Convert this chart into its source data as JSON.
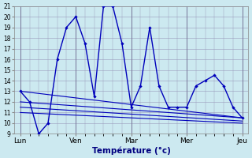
{
  "xlabel": "Température (°c)",
  "ylim": [
    9,
    21
  ],
  "yticks": [
    9,
    10,
    11,
    12,
    13,
    14,
    15,
    16,
    17,
    18,
    19,
    20,
    21
  ],
  "background_color": "#cce9f0",
  "grid_color": "#9999bb",
  "line_color": "#0000bb",
  "day_labels": [
    "Lun",
    "Ven",
    "Mar",
    "Mer",
    "Jeu"
  ],
  "day_x": [
    0,
    72,
    144,
    216,
    288
  ],
  "main_x": [
    0,
    12,
    24,
    36,
    48,
    60,
    72,
    84,
    96,
    108,
    120,
    132,
    144,
    156,
    168,
    180,
    192,
    204,
    216,
    228,
    240,
    252,
    264,
    276,
    288
  ],
  "main_y": [
    13.0,
    12.0,
    9.0,
    10.0,
    16.0,
    19.0,
    20.0,
    17.5,
    12.5,
    21.0,
    21.0,
    17.5,
    11.5,
    13.5,
    19.0,
    13.5,
    11.5,
    11.5,
    11.5,
    13.5,
    14.0,
    14.5,
    13.5,
    11.5,
    10.5
  ],
  "ref_lines": [
    {
      "x": [
        0,
        288
      ],
      "y": [
        13.0,
        10.5
      ]
    },
    {
      "x": [
        0,
        288
      ],
      "y": [
        12.0,
        10.5
      ]
    },
    {
      "x": [
        0,
        288
      ],
      "y": [
        11.5,
        10.2
      ]
    },
    {
      "x": [
        0,
        288
      ],
      "y": [
        11.0,
        10.0
      ]
    }
  ]
}
